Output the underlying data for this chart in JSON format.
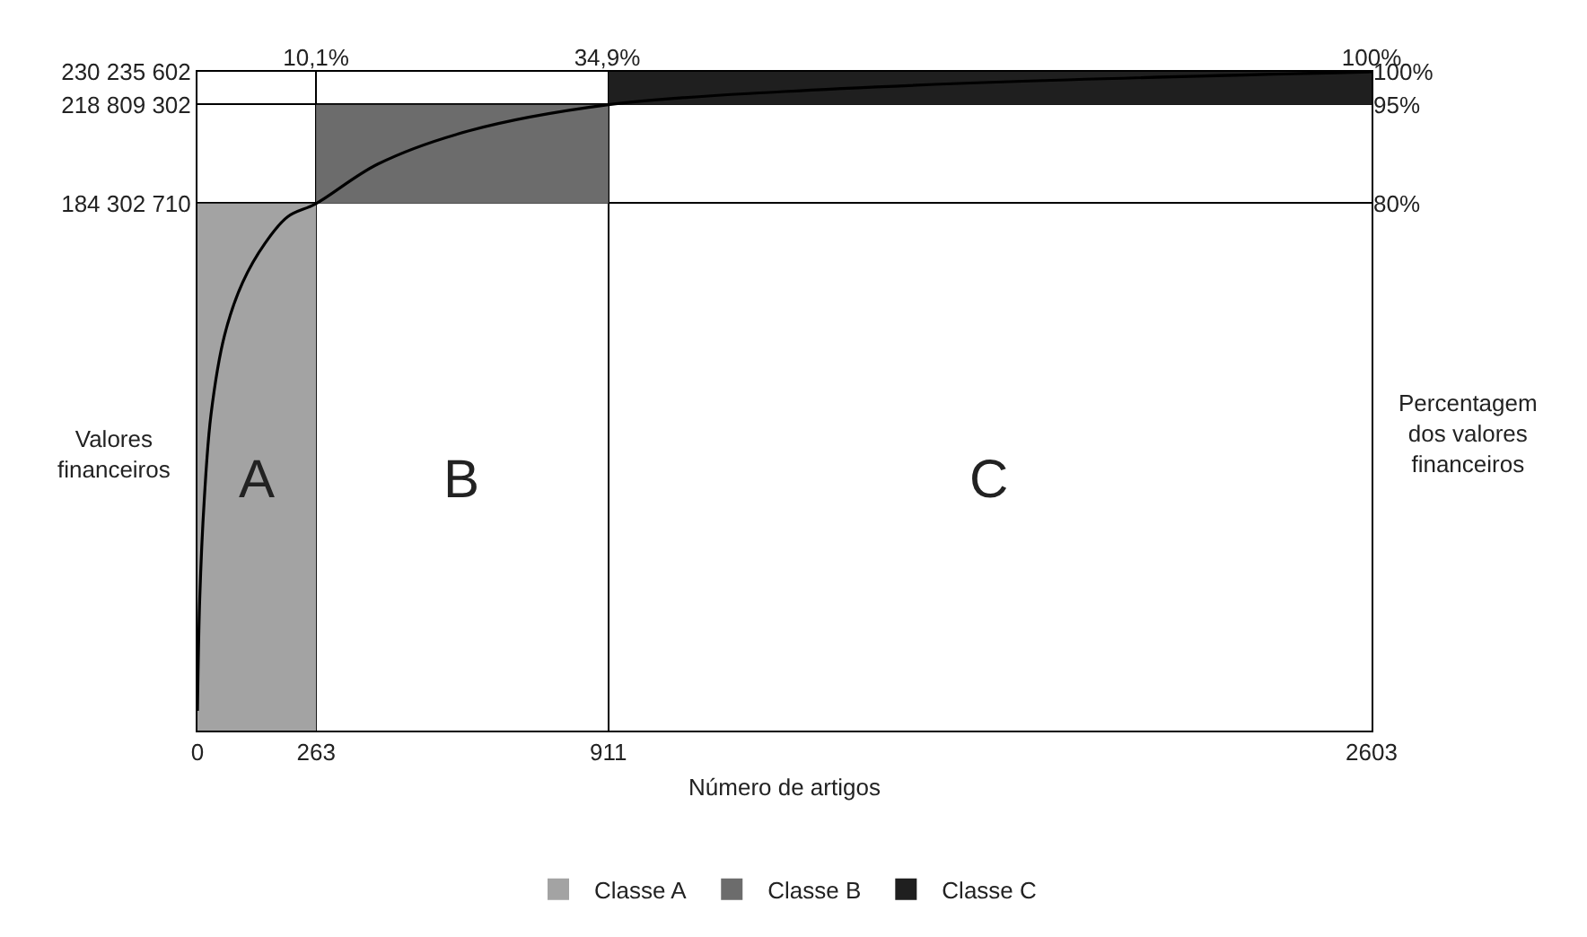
{
  "chart_data": {
    "type": "histogram",
    "xlabel": "Número de artigos",
    "ylabel": "Valores financeiros",
    "y2label": "Percentagem dos valores financeiros",
    "xlim": [
      0,
      2603
    ],
    "xticks": [
      0,
      263,
      911,
      2603
    ],
    "x2lim": [
      0,
      100
    ],
    "x2ticks": [
      {
        "value": 10.1,
        "label": "10,1%"
      },
      {
        "value": 34.9,
        "label": "34,9%"
      },
      {
        "value": 100,
        "label": "100%"
      }
    ],
    "ylim": [
      0,
      230235602
    ],
    "yticks": [
      {
        "value": 184302710,
        "label": "184 302 710"
      },
      {
        "value": 218809302,
        "label": "218 809 302"
      },
      {
        "value": 230235602,
        "label": "230 235 602"
      }
    ],
    "y2lim": [
      0,
      100
    ],
    "y2ticks": [
      {
        "value": 80,
        "label": "80%"
      },
      {
        "value": 95,
        "label": "95%"
      },
      {
        "value": 100,
        "label": "100%"
      }
    ],
    "grid": true,
    "legend": "bottom",
    "series": [
      {
        "name": "Classe A",
        "axis": "y2",
        "bins": [
          0,
          263
        ],
        "values": [
          80
        ],
        "base": [
          0
        ],
        "color": "#a3a3a3"
      },
      {
        "name": "Classe B",
        "axis": "y2",
        "bins": [
          263,
          911
        ],
        "values": [
          15
        ],
        "base": [
          80
        ],
        "color": "#6c6c6c"
      },
      {
        "name": "Classe C",
        "axis": "y2",
        "bins": [
          911,
          2603
        ],
        "values": [
          5
        ],
        "base": [
          95
        ],
        "color": "#1f1f1f"
      },
      {
        "type": "line",
        "axis": "y2",
        "color": "#000000",
        "x": [
          0,
          5,
          15,
          30,
          60,
          100,
          150,
          200,
          263,
          400,
          600,
          911,
          1300,
          1800,
          2603
        ],
        "values": [
          3,
          20,
          35,
          48,
          60,
          68,
          74,
          78,
          80,
          86,
          91,
          95,
          97,
          98.5,
          100
        ]
      }
    ],
    "annotations": [
      "A",
      "B",
      "C"
    ]
  }
}
